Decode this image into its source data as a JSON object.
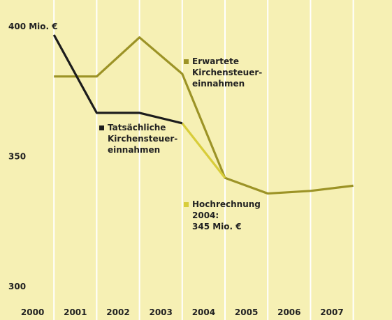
{
  "chart_data": {
    "type": "line",
    "categories": [
      "2000",
      "2001",
      "2002",
      "2003",
      "2004",
      "2005",
      "2006",
      "2007"
    ],
    "series": [
      {
        "name": "Tatsächliche Kirchensteuer-einnahmen",
        "color": "#1c1c1c",
        "values": [
          400,
          370,
          370,
          366,
          null,
          null,
          null,
          null
        ]
      },
      {
        "name": "Erwartete Kirchensteuer-einnahmen",
        "color": "#9c9326",
        "values": [
          384,
          384,
          399,
          385,
          345,
          339,
          340,
          342
        ]
      },
      {
        "name": "Hochrechnung 2004:\n345 Mio. €",
        "color": "#d8cd3a",
        "values": [
          null,
          null,
          null,
          366,
          345,
          null,
          null,
          null
        ]
      }
    ],
    "ylim": [
      297.6,
      413.4
    ],
    "yticks": [
      {
        "value": 400,
        "label": "400 Mio. €"
      },
      350,
      300
    ],
    "grid": false
  }
}
